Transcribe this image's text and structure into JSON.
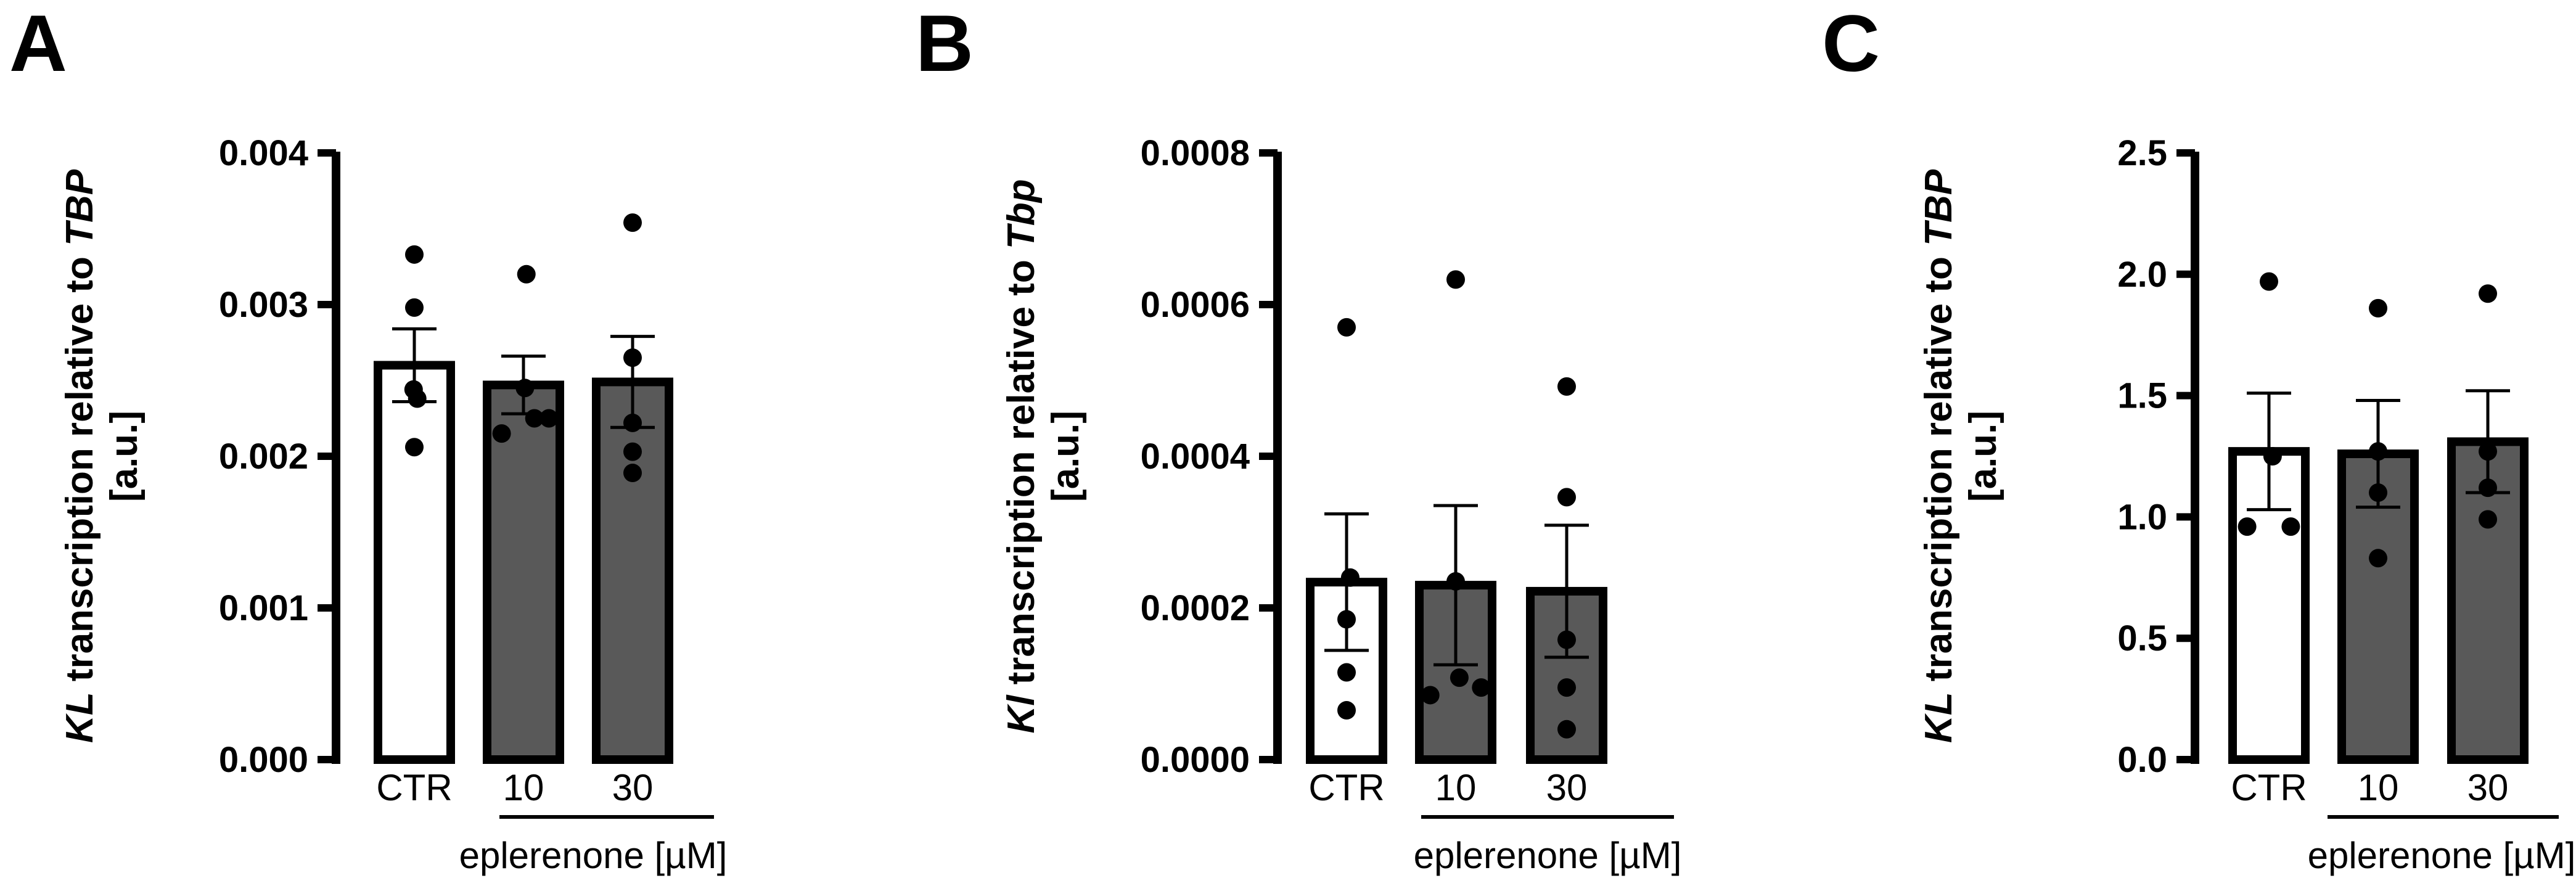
{
  "colors": {
    "ctr_fill": "#ffffff",
    "treated_fill": "#595959",
    "stroke": "#000000",
    "point": "#000000"
  },
  "chart_data": [
    {
      "panel": "A",
      "type": "bar",
      "categories": [
        "CTR",
        "10",
        "30"
      ],
      "group_label": "eplerenone [µM]",
      "ylabel_italic": "KL",
      "ylabel_middle": " transcription relative to ",
      "ylabel_italic2": "TBP",
      "ylabel_line2": "[a.u.]",
      "ylim": [
        0,
        0.004
      ],
      "yticks": [
        0,
        0.001,
        0.002,
        0.003,
        0.004
      ],
      "ytick_labels": [
        "0.000",
        "0.001",
        "0.002",
        "0.003",
        "0.004"
      ],
      "values": [
        0.0026,
        0.00247,
        0.00249
      ],
      "error": [
        0.00024,
        0.00019,
        0.0003
      ],
      "points": [
        [
          [
            0.0,
            0.00333
          ],
          [
            0.0,
            0.00298
          ],
          [
            -0.01,
            0.00244
          ],
          [
            0.04,
            0.00238
          ],
          [
            0.0,
            0.00206
          ]
        ],
        [
          [
            0.04,
            0.0032
          ],
          [
            0.02,
            0.00245
          ],
          [
            -0.3,
            0.00215
          ],
          [
            0.15,
            0.00225
          ],
          [
            0.35,
            0.00225
          ]
        ],
        [
          [
            0.0,
            0.00354
          ],
          [
            0.0,
            0.00265
          ],
          [
            0.0,
            0.00222
          ],
          [
            0.0,
            0.00203
          ],
          [
            0.0,
            0.00189
          ]
        ]
      ]
    },
    {
      "panel": "B",
      "type": "bar",
      "categories": [
        "CTR",
        "10",
        "30"
      ],
      "group_label": "eplerenone [µM]",
      "ylabel_italic": "Kl",
      "ylabel_middle": " transcription relative to ",
      "ylabel_italic2": "Tbp",
      "ylabel_line2": "[a.u.]",
      "ylim": [
        0,
        0.0008
      ],
      "yticks": [
        0,
        0.0002,
        0.0004,
        0.0006,
        0.0008
      ],
      "ytick_labels": [
        "0.0000",
        "0.0002",
        "0.0004",
        "0.0006",
        "0.0008"
      ],
      "values": [
        0.000234,
        0.00023,
        0.000222
      ],
      "error": [
        9e-05,
        0.000105,
        8.7e-05
      ],
      "points": [
        [
          [
            0.0,
            0.00057
          ],
          [
            0.05,
            0.00024
          ],
          [
            0.0,
            0.000185
          ],
          [
            0.0,
            0.000115
          ],
          [
            0.0,
            6.5e-05
          ]
        ],
        [
          [
            0.0,
            0.000633
          ],
          [
            0.0,
            0.000235
          ],
          [
            -0.35,
            8.5e-05
          ],
          [
            0.05,
            0.000108
          ],
          [
            0.35,
            9.5e-05
          ]
        ],
        [
          [
            0.0,
            0.000492
          ],
          [
            0.0,
            0.000346
          ],
          [
            0.0,
            0.000158
          ],
          [
            0.0,
            9.5e-05
          ],
          [
            0.0,
            4e-05
          ]
        ]
      ]
    },
    {
      "panel": "C",
      "type": "bar",
      "categories": [
        "CTR",
        "10",
        "30"
      ],
      "group_label": "eplerenone [µM]",
      "ylabel_italic": "KL",
      "ylabel_middle": " transcription relative to ",
      "ylabel_italic2": "TBP",
      "ylabel_line2": "[a.u.]",
      "ylim": [
        0,
        2.5
      ],
      "yticks": [
        0,
        0.5,
        1.0,
        1.5,
        2.0,
        2.5
      ],
      "ytick_labels": [
        "0.0",
        "0.5",
        "1.0",
        "1.5",
        "2.0",
        "2.5"
      ],
      "values": [
        1.27,
        1.26,
        1.31
      ],
      "error": [
        0.24,
        0.22,
        0.21
      ],
      "points": [
        [
          [
            0.0,
            1.97
          ],
          [
            0.05,
            1.25
          ],
          [
            -0.3,
            0.96
          ],
          [
            0.3,
            0.96
          ]
        ],
        [
          [
            0.0,
            1.86
          ],
          [
            0.0,
            1.27
          ],
          [
            0.0,
            1.1
          ],
          [
            0.0,
            0.83
          ]
        ],
        [
          [
            0.0,
            1.92
          ],
          [
            0.0,
            1.27
          ],
          [
            0.0,
            1.12
          ],
          [
            0.0,
            0.99
          ]
        ]
      ]
    }
  ]
}
